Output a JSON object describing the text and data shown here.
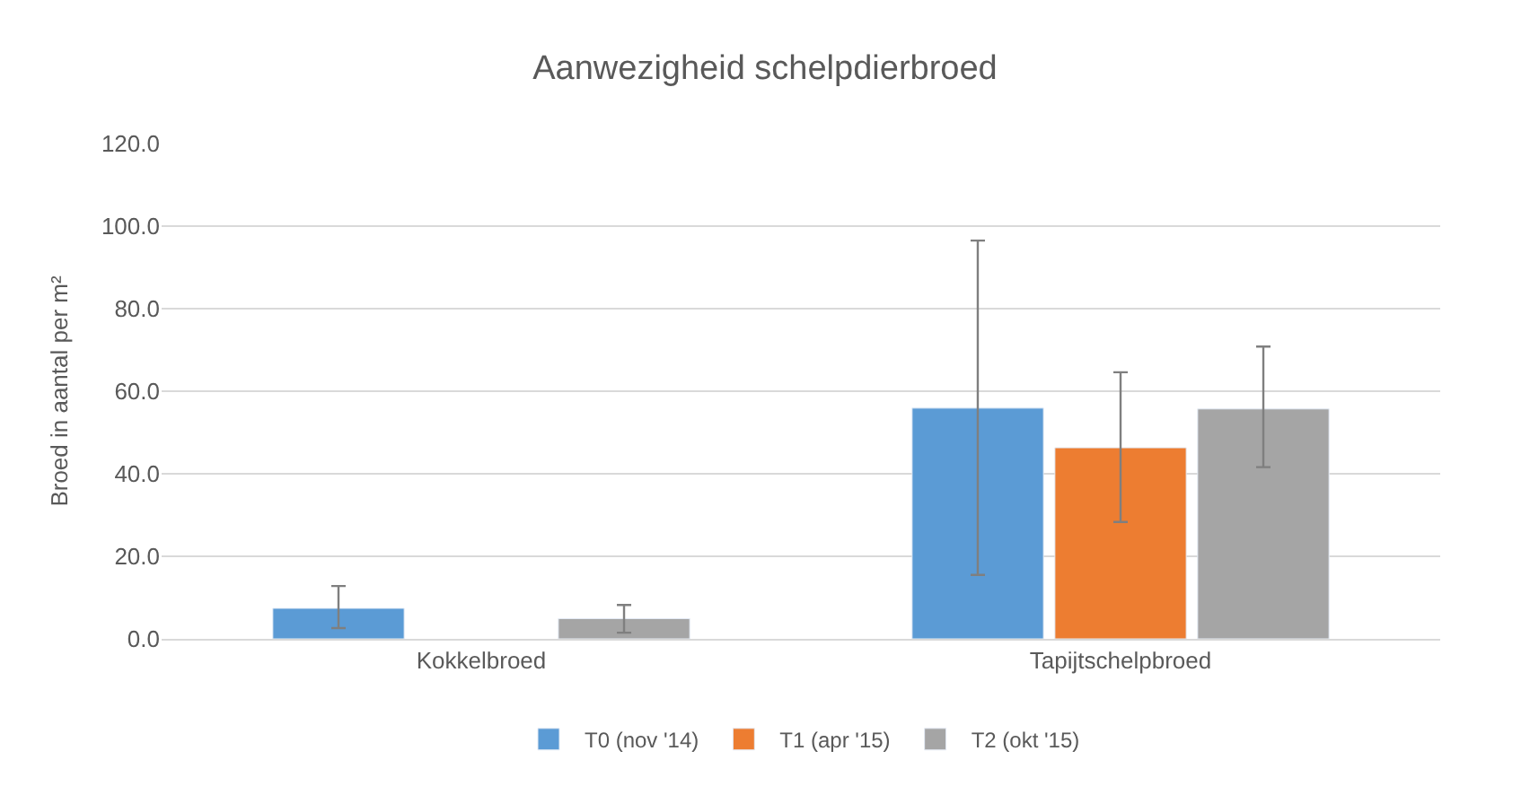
{
  "chart_data": {
    "type": "bar",
    "title": "Aanwezigheid schelpdierbroed",
    "ylabel": "Broed in aantal per m²",
    "categories": [
      "Kokkelbroed",
      "Tapijtschelpbroed"
    ],
    "series": [
      {
        "name": "T0 (nov '14)",
        "color": "#5b9bd5",
        "values": [
          7.4,
          55.9
        ],
        "errors": [
          [
            2.6,
            12.8
          ],
          [
            15.5,
            96.5
          ]
        ]
      },
      {
        "name": "T1 (apr '15)",
        "color": "#ed7d31",
        "values": [
          null,
          46.3
        ],
        "errors": [
          null,
          [
            28.3,
            64.6
          ]
        ]
      },
      {
        "name": "T2 (okt '15)",
        "color": "#a5a5a5",
        "values": [
          4.9,
          55.7
        ],
        "errors": [
          [
            1.5,
            8.2
          ],
          [
            41.6,
            70.8
          ]
        ]
      }
    ],
    "ylim": [
      0,
      120
    ],
    "yticks": [
      {
        "value": 0,
        "label": "0.0"
      },
      {
        "value": 20,
        "label": "20.0"
      },
      {
        "value": 40,
        "label": "40.0"
      },
      {
        "value": 60,
        "label": "60.0"
      },
      {
        "value": 80,
        "label": "80.0"
      },
      {
        "value": 100,
        "label": "100.0"
      },
      {
        "value": 120,
        "label": "120.0"
      }
    ],
    "grid": "y",
    "legend": "bottom"
  }
}
